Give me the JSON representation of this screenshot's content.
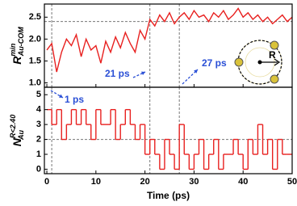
{
  "chart_data": [
    {
      "type": "line",
      "ylabel": {
        "main": "R",
        "sup": "min",
        "sub": "Au-COM"
      },
      "x": [
        0,
        1,
        2,
        3,
        4,
        5,
        6,
        7,
        8,
        9,
        10,
        11,
        12,
        13,
        14,
        15,
        16,
        17,
        18,
        19,
        20,
        21,
        22,
        23,
        24,
        25,
        26,
        27,
        28,
        29,
        30,
        31,
        32,
        33,
        34,
        35,
        36,
        37,
        38,
        39,
        40,
        41,
        42,
        43,
        44,
        45,
        46,
        47,
        48,
        49,
        50
      ],
      "values": [
        1.75,
        1.9,
        1.25,
        1.7,
        2.0,
        1.85,
        2.1,
        1.6,
        2.0,
        1.75,
        1.85,
        1.45,
        1.95,
        1.7,
        2.05,
        1.8,
        2.15,
        1.9,
        1.7,
        2.2,
        2.0,
        2.45,
        2.3,
        2.55,
        2.4,
        2.6,
        2.35,
        2.5,
        2.6,
        2.45,
        2.65,
        2.5,
        2.55,
        2.4,
        2.6,
        2.5,
        2.65,
        2.45,
        2.55,
        2.7,
        2.5,
        2.6,
        2.45,
        2.55,
        2.4,
        2.5,
        2.35,
        2.45,
        2.55,
        2.4,
        2.5
      ],
      "color": "#e8201f",
      "xlim": [
        -0.5,
        50
      ],
      "xticks": [
        0,
        10,
        20,
        30,
        40,
        50
      ],
      "ylim": [
        0.9,
        2.8
      ],
      "yticks": [
        {
          "value": 1,
          "label": "1.0"
        },
        1.5,
        {
          "value": 2,
          "label": "2.0"
        },
        2.5
      ],
      "vlines": [
        1,
        21,
        27
      ],
      "hline": 2.4,
      "annotations": [
        "21 ps",
        "27 ps"
      ],
      "annotation_color": "#2a4fd6",
      "inset_label": "R"
    },
    {
      "type": "step",
      "ylabel": {
        "main": "N",
        "sup": "R<2.40",
        "sub": "Au"
      },
      "xlabel": "Time (ps)",
      "x": [
        0,
        1,
        2,
        3,
        4,
        5,
        6,
        7,
        8,
        9,
        10,
        11,
        12,
        13,
        14,
        15,
        16,
        17,
        18,
        19,
        20,
        21,
        22,
        23,
        24,
        25,
        26,
        27,
        28,
        29,
        30,
        31,
        32,
        33,
        34,
        35,
        36,
        37,
        38,
        39,
        40,
        41,
        42,
        43,
        44,
        45,
        46,
        47,
        48,
        49,
        50
      ],
      "values": [
        4,
        3,
        4,
        2,
        3,
        4,
        3,
        4,
        3,
        2,
        4,
        3,
        3,
        4,
        2,
        3,
        4,
        3,
        2,
        3,
        1,
        2,
        1,
        0,
        2,
        1,
        0,
        3,
        1,
        0,
        1,
        2,
        0,
        1,
        2,
        0,
        1,
        1,
        2,
        1,
        0,
        2,
        1,
        3,
        1,
        2,
        0,
        2,
        1,
        1,
        1
      ],
      "color": "#e8201f",
      "xlim": [
        -0.5,
        50
      ],
      "xticks": [
        0,
        10,
        20,
        30,
        40,
        50
      ],
      "ylim": [
        -0.3,
        5.5
      ],
      "yticks": [
        0,
        1,
        2,
        3,
        4,
        5
      ],
      "vlines": [
        1,
        21,
        27
      ],
      "hline": 2,
      "annotations": [
        "1 ps"
      ],
      "annotation_color": "#2a4fd6"
    }
  ]
}
